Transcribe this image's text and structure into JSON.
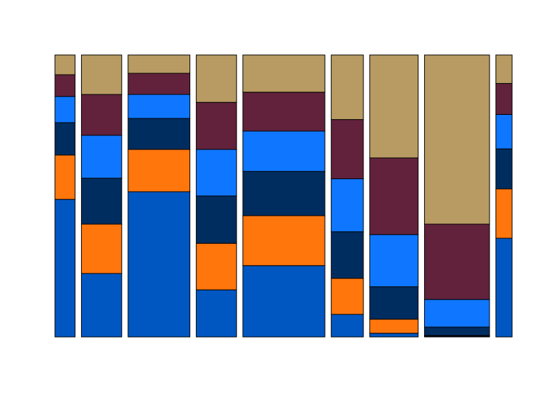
{
  "chart_data": {
    "type": "mosaic",
    "title": "",
    "xlabel": "",
    "ylabel": "",
    "grid": false,
    "legend": "none",
    "segment_colors": [
      "#0057C1",
      "#FF760D",
      "#002D60",
      "#0F77FF",
      "#62223C",
      "#B89B62"
    ],
    "columns": [
      {
        "width": 0.057,
        "values": [
          0.488,
          0.157,
          0.115,
          0.093,
          0.077,
          0.07
        ]
      },
      {
        "width": 0.114,
        "values": [
          0.225,
          0.175,
          0.163,
          0.152,
          0.145,
          0.14
        ]
      },
      {
        "width": 0.175,
        "values": [
          0.515,
          0.15,
          0.11,
          0.085,
          0.075,
          0.065
        ]
      },
      {
        "width": 0.114,
        "values": [
          0.167,
          0.165,
          0.168,
          0.165,
          0.167,
          0.168
        ]
      },
      {
        "width": 0.232,
        "values": [
          0.253,
          0.177,
          0.157,
          0.143,
          0.138,
          0.132
        ]
      },
      {
        "width": 0.091,
        "values": [
          0.08,
          0.128,
          0.165,
          0.188,
          0.21,
          0.229
        ]
      },
      {
        "width": 0.137,
        "values": [
          0.013,
          0.05,
          0.115,
          0.185,
          0.272,
          0.365
        ]
      },
      {
        "width": 0.184,
        "values": [
          0.003,
          0.002,
          0.03,
          0.098,
          0.267,
          0.6
        ]
      },
      {
        "width": 0.046,
        "values": [
          0.35,
          0.175,
          0.142,
          0.122,
          0.11,
          0.101
        ]
      }
    ]
  }
}
